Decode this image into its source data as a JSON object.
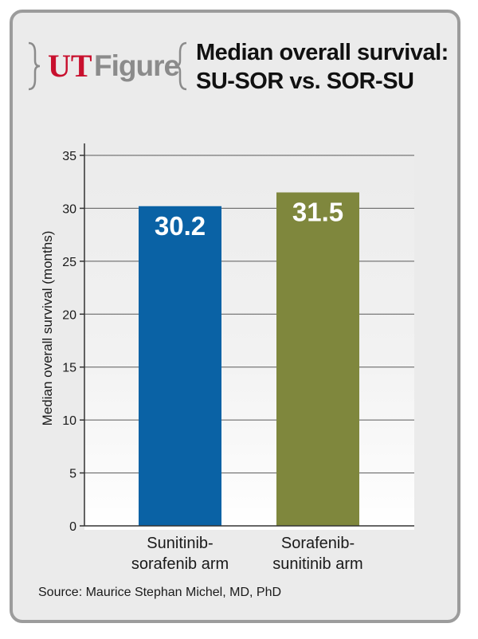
{
  "logo": {
    "ut": "UT",
    "figure": "Figure"
  },
  "header": {
    "title_line1": "Median overall survival:",
    "title_line2": "SU-SOR vs. SOR-SU"
  },
  "source": "Source: Maurice Stephan Michel, MD, PhD",
  "colors": {
    "frame": "#9c9c9c",
    "panel": "#ebebeb",
    "logo_red": "#c8102e",
    "logo_gray": "#8b8b8b"
  },
  "chart_data": {
    "type": "bar",
    "title": "Median overall survival: SU-SOR vs. SOR-SU",
    "xlabel": "",
    "ylabel": "Median overall survival (months)",
    "ylim": [
      0,
      35
    ],
    "yticks": [
      0,
      5,
      10,
      15,
      20,
      25,
      30,
      35
    ],
    "grid": true,
    "categories": [
      [
        "Sunitinib-",
        "sorafenib arm"
      ],
      [
        "Sorafenib-",
        "sunitinib arm"
      ]
    ],
    "values": [
      30.2,
      31.5
    ],
    "value_labels": [
      "30.2",
      "31.5"
    ],
    "colors": [
      "#0a62a5",
      "#7f873d"
    ]
  }
}
